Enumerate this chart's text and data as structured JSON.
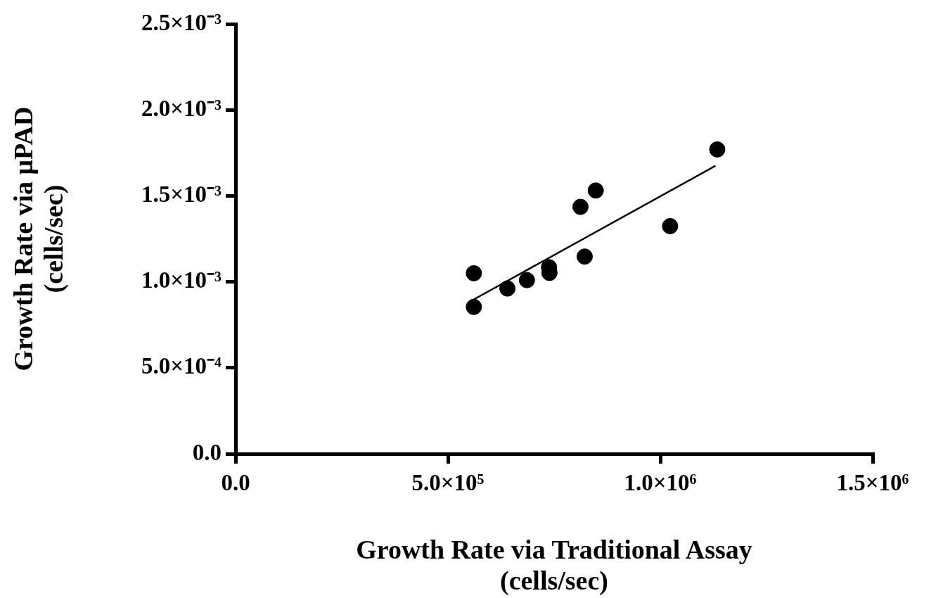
{
  "chart_data": {
    "type": "scatter",
    "xlabel": "Growth Rate via Traditional Assay\n(cells/sec)",
    "ylabel": "Growth Rate via μPAD\n(cells/sec)",
    "x": [
      561000,
      561000,
      640000,
      686000,
      738000,
      739000,
      812000,
      822000,
      848000,
      1023000,
      1134000
    ],
    "series": [
      {
        "color": "#000000",
        "marker": "circle",
        "values": [
          0.00105,
          0.000854,
          0.000961,
          0.00101,
          0.001085,
          0.001052,
          0.001436,
          0.001147,
          0.001531,
          0.001324,
          0.00177
        ]
      },
      {
        "type": "line",
        "color": "#000000",
        "marker": "none",
        "x": [
          559000,
          1130000
        ],
        "values": [
          0.000895,
          0.001675
        ]
      }
    ],
    "xlim": [
      0,
      1500000
    ],
    "xticks": [
      {
        "value": 0,
        "label": "0.0"
      },
      {
        "value": 500000,
        "label": "5.0×10⁵"
      },
      {
        "value": 1000000,
        "label": "1.0×10⁶"
      },
      {
        "value": 1500000,
        "label": "1.5×10⁶"
      }
    ],
    "ylim": [
      0,
      0.0025
    ],
    "yticks": [
      {
        "value": 0,
        "label": "0.0"
      },
      {
        "value": 0.0005,
        "label": "5.0×10⁻⁴"
      },
      {
        "value": 0.001,
        "label": "1.0×10⁻³"
      },
      {
        "value": 0.0015,
        "label": "1.5×10⁻³"
      },
      {
        "value": 0.002,
        "label": "2.0×10⁻³"
      },
      {
        "value": 0.0025,
        "label": "2.5×10⁻³"
      }
    ],
    "grid": false,
    "legend": false
  }
}
